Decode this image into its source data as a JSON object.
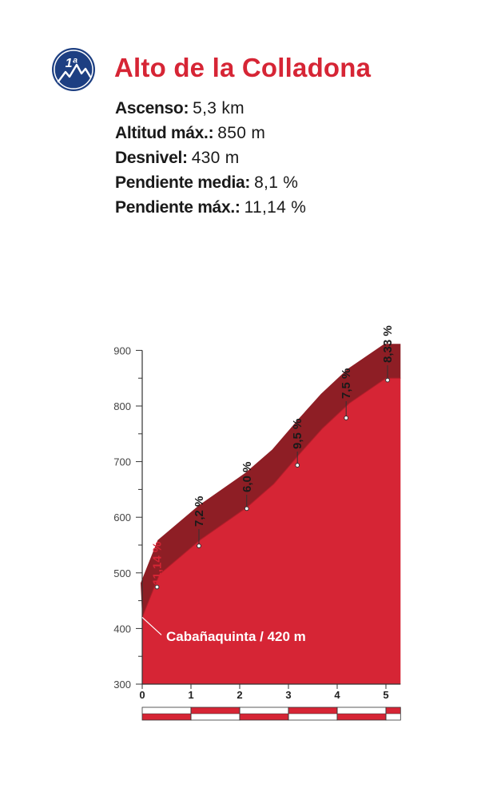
{
  "header": {
    "category_badge": "1ª",
    "badge_icon": "mountain-peaks-icon",
    "title": "Alto de la Colladona"
  },
  "stats": [
    {
      "label": "Ascenso:",
      "value": "5,3 km"
    },
    {
      "label": "Altitud máx.:",
      "value": "850 m"
    },
    {
      "label": "Desnivel:",
      "value": "430 m"
    },
    {
      "label": "Pendiente media:",
      "value": "8,1 %"
    },
    {
      "label": "Pendiente máx.:",
      "value": "11,14 %"
    }
  ],
  "colors": {
    "title": "#d62535",
    "badge_bg": "#1d3f82",
    "profile_fill": "#d62535",
    "profile_dark": "#8e1e25",
    "max_grade_label": "#d62535",
    "axis": "#333333"
  },
  "chart_data": {
    "type": "area",
    "xlabel": "",
    "ylabel": "",
    "xlim": [
      0,
      5.3
    ],
    "ylim": [
      300,
      900
    ],
    "x_ticks": [
      "0",
      "1",
      "2",
      "3",
      "4",
      "5"
    ],
    "y_ticks": [
      "300",
      "400",
      "500",
      "600",
      "700",
      "800",
      "900"
    ],
    "grid": false,
    "profile": {
      "x": [
        0,
        0.35,
        1.2,
        2.15,
        2.7,
        3.25,
        3.7,
        4.25,
        5.0,
        5.3
      ],
      "y": [
        420,
        497,
        560,
        618,
        660,
        716,
        760,
        805,
        850,
        850
      ]
    },
    "segments": [
      {
        "x": 0.32,
        "y": 456,
        "grade": "11,14 %",
        "max": true
      },
      {
        "x": 1.18,
        "y": 530,
        "grade": "7,2 %"
      },
      {
        "x": 2.16,
        "y": 597,
        "grade": "6,0 %"
      },
      {
        "x": 3.2,
        "y": 675,
        "grade": "9,5 %"
      },
      {
        "x": 4.2,
        "y": 760,
        "grade": "7,5 %"
      },
      {
        "x": 5.05,
        "y": 828,
        "grade": "8,33 %"
      }
    ],
    "start_annotation": {
      "text": "Cabañaquinta / 420 m",
      "x": 0,
      "y": 420
    },
    "km_bar": [
      {
        "from": 0,
        "to": 1
      },
      {
        "from": 1,
        "to": 2
      },
      {
        "from": 2,
        "to": 3
      },
      {
        "from": 3,
        "to": 4
      },
      {
        "from": 4,
        "to": 5
      },
      {
        "from": 5,
        "to": 5.3
      }
    ]
  }
}
